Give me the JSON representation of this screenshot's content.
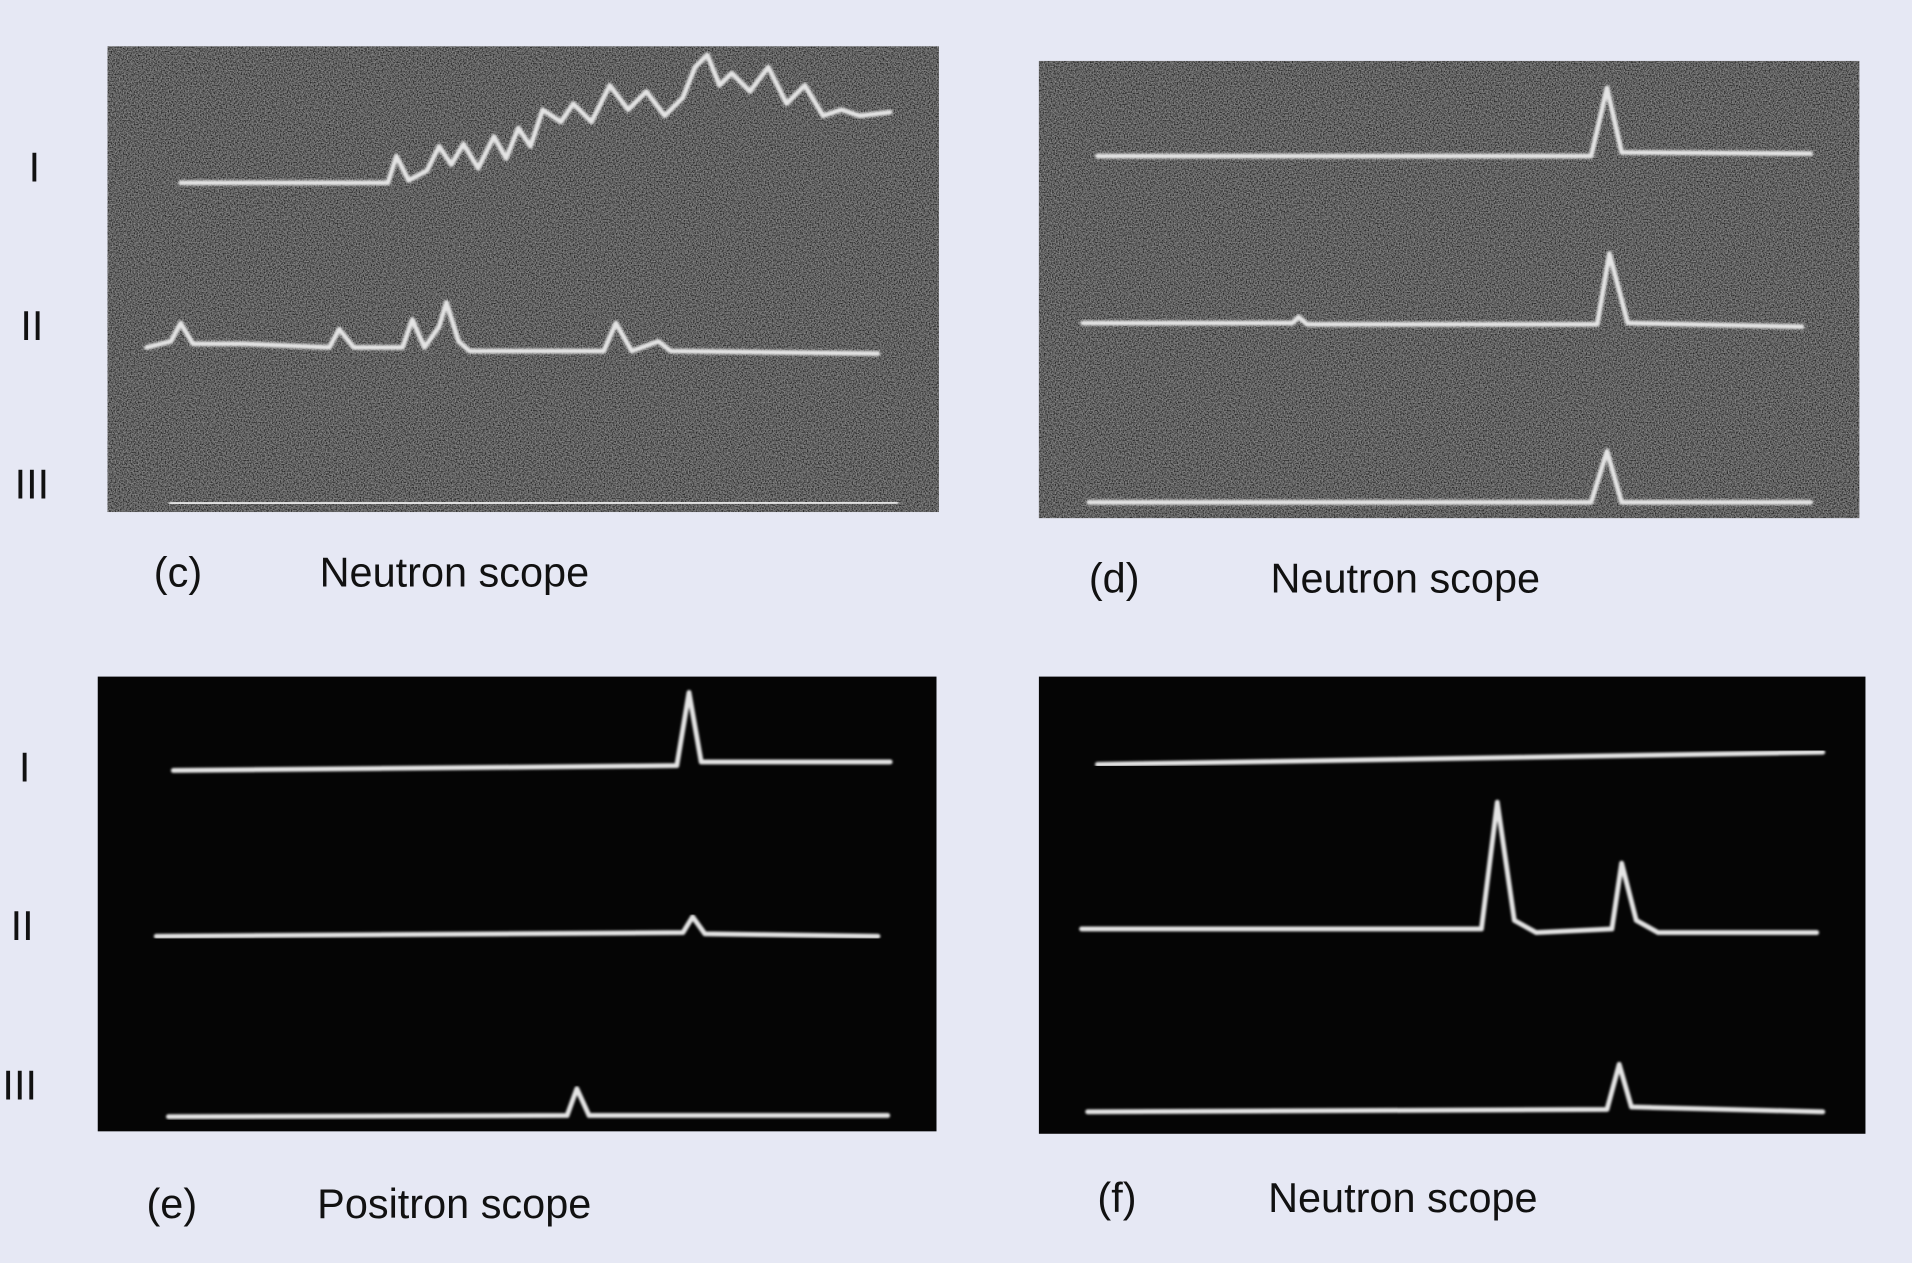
{
  "rows": [
    {
      "trace_labels": [
        "I",
        "II",
        "III"
      ],
      "panels": [
        {
          "label": "(c)",
          "scope": "Neutron scope"
        },
        {
          "label": "(d)",
          "scope": "Neutron scope"
        }
      ]
    },
    {
      "trace_labels": [
        "I",
        "II",
        "III"
      ],
      "panels": [
        {
          "label": "(e)",
          "scope": "Positron scope"
        },
        {
          "label": "(f)",
          "scope": "Neutron scope"
        }
      ]
    }
  ]
}
